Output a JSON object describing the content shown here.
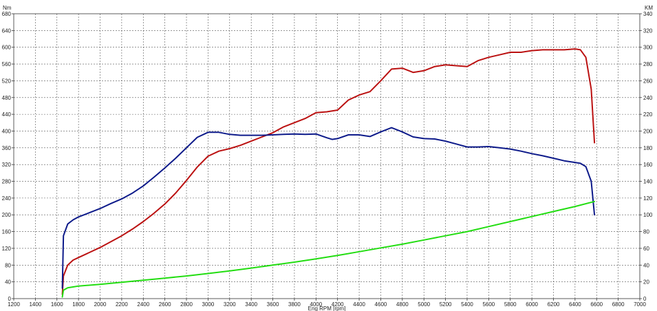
{
  "chart_data": {
    "type": "line",
    "xlabel": "Eng RPM [rpm]",
    "ylabel_left": "Nm",
    "ylabel_right": "KM",
    "xlim": [
      1200,
      7000
    ],
    "ylim_left": [
      0,
      680
    ],
    "ylim_right": [
      0,
      340
    ],
    "grid": true,
    "x_ticks": [
      1200,
      1400,
      1600,
      1800,
      2000,
      2200,
      2400,
      2600,
      2800,
      3000,
      3200,
      3400,
      3600,
      3800,
      4000,
      4200,
      4400,
      4600,
      4800,
      5000,
      5200,
      5400,
      5600,
      5800,
      6000,
      6200,
      6400,
      6600,
      6800,
      7000
    ],
    "y_left_ticks": [
      0,
      40,
      80,
      120,
      160,
      200,
      240,
      280,
      320,
      360,
      400,
      440,
      480,
      520,
      560,
      600,
      640,
      680
    ],
    "y_right_ticks": [
      0,
      20,
      40,
      60,
      80,
      100,
      120,
      140,
      160,
      180,
      200,
      220,
      240,
      260,
      280,
      300,
      320,
      340
    ],
    "series": [
      {
        "color": "#bb1111",
        "axis": "right",
        "x": [
          1650,
          1660,
          1700,
          1750,
          1800,
          1900,
          2000,
          2100,
          2200,
          2300,
          2400,
          2500,
          2600,
          2700,
          2800,
          2900,
          3000,
          3100,
          3200,
          3300,
          3400,
          3500,
          3600,
          3700,
          3800,
          3900,
          4000,
          4100,
          4200,
          4300,
          4400,
          4500,
          4600,
          4700,
          4800,
          4900,
          5000,
          5100,
          5200,
          5300,
          5400,
          5500,
          5600,
          5700,
          5800,
          5900,
          6000,
          6100,
          6200,
          6300,
          6400,
          6450,
          6500,
          6550,
          6580
        ],
        "values": [
          5,
          27,
          40,
          46,
          49,
          55,
          61,
          68,
          75,
          83,
          92,
          102,
          113,
          126,
          141,
          157,
          170,
          176,
          179,
          183,
          188,
          193,
          198,
          205,
          210,
          215,
          222,
          223,
          225,
          237,
          243,
          247,
          260,
          274,
          275,
          270,
          272,
          277,
          279,
          278,
          277,
          284,
          288,
          291,
          294,
          294,
          296,
          297,
          297,
          297,
          298,
          297,
          288,
          250,
          186
        ]
      },
      {
        "color": "#0d1a8a",
        "axis": "left",
        "x": [
          1650,
          1660,
          1700,
          1750,
          1800,
          1900,
          2000,
          2100,
          2200,
          2300,
          2400,
          2500,
          2600,
          2700,
          2800,
          2900,
          3000,
          3100,
          3200,
          3300,
          3400,
          3500,
          3600,
          3700,
          3800,
          3900,
          4000,
          4100,
          4150,
          4200,
          4300,
          4400,
          4500,
          4600,
          4700,
          4800,
          4900,
          5000,
          5100,
          5200,
          5300,
          5400,
          5500,
          5600,
          5700,
          5800,
          5900,
          6000,
          6100,
          6200,
          6300,
          6400,
          6450,
          6500,
          6550,
          6580
        ],
        "values": [
          25,
          150,
          178,
          188,
          195,
          205,
          215,
          227,
          238,
          252,
          269,
          290,
          312,
          335,
          360,
          385,
          397,
          397,
          392,
          390,
          390,
          390,
          391,
          392,
          393,
          392,
          393,
          384,
          380,
          382,
          391,
          391,
          387,
          398,
          408,
          398,
          386,
          382,
          381,
          376,
          369,
          362,
          362,
          363,
          360,
          357,
          352,
          346,
          341,
          335,
          329,
          325,
          323,
          315,
          280,
          200
        ]
      },
      {
        "color": "#22dd11",
        "axis": "right",
        "x": [
          1650,
          1660,
          1700,
          1750,
          1800,
          2000,
          2200,
          2400,
          2600,
          2800,
          3000,
          3200,
          3400,
          3600,
          3800,
          4000,
          4200,
          4400,
          4600,
          4800,
          5000,
          5200,
          5400,
          5600,
          5800,
          6000,
          6200,
          6400,
          6580
        ],
        "values": [
          2,
          10,
          13,
          14,
          15,
          17,
          19.5,
          22,
          24.5,
          27,
          30,
          33,
          36.5,
          40,
          43.5,
          47.5,
          51.5,
          56,
          60.5,
          65,
          70,
          75,
          80,
          86,
          92,
          98,
          104,
          110,
          116
        ]
      }
    ]
  }
}
